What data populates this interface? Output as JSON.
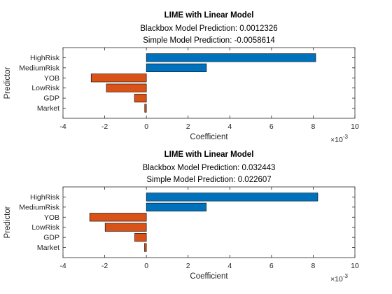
{
  "chart_data": [
    {
      "type": "bar",
      "orientation": "horizontal",
      "title": "LIME with Linear Model",
      "subtitle": [
        "Blackbox Model Prediction: 0.0012326",
        "Simple Model Prediction: -0.0058614"
      ],
      "categories": [
        "HighRisk",
        "MediumRisk",
        "YOB",
        "LowRisk",
        "GDP",
        "Market"
      ],
      "values": [
        0.00812,
        0.00288,
        -0.00265,
        -0.00192,
        -0.00057,
        -8e-05
      ],
      "colors": [
        "#0072BD",
        "#0072BD",
        "#D95319",
        "#D95319",
        "#D95319",
        "#D95319"
      ],
      "xlabel": "Coefficient",
      "ylabel": "Predictor",
      "xlim": [
        -0.004,
        0.01
      ],
      "xticks": [
        "-4",
        "-2",
        "0",
        "2",
        "4",
        "6",
        "8",
        "10"
      ],
      "x_exponent_label": "×10",
      "x_exponent_power": "-3",
      "grid": false,
      "legend": "none"
    },
    {
      "type": "bar",
      "orientation": "horizontal",
      "title": "LIME with Linear Model",
      "subtitle": [
        "Blackbox Model Prediction: 0.032443",
        "Simple Model Prediction: 0.022607"
      ],
      "categories": [
        "HighRisk",
        "MediumRisk",
        "YOB",
        "LowRisk",
        "GDP",
        "Market"
      ],
      "values": [
        0.00822,
        0.00287,
        -0.00272,
        -0.00198,
        -0.00056,
        -9e-05
      ],
      "colors": [
        "#0072BD",
        "#0072BD",
        "#D95319",
        "#D95319",
        "#D95319",
        "#D95319"
      ],
      "xlabel": "Coefficient",
      "ylabel": "Predictor",
      "xlim": [
        -0.004,
        0.01
      ],
      "xticks": [
        "-4",
        "-2",
        "0",
        "2",
        "4",
        "6",
        "8",
        "10"
      ],
      "x_exponent_label": "×10",
      "x_exponent_power": "-3",
      "grid": false,
      "legend": "none"
    }
  ]
}
